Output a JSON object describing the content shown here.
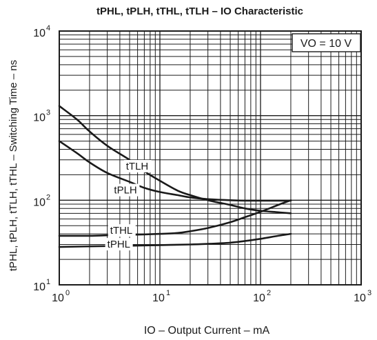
{
  "chart_data": {
    "type": "line",
    "title": "tPHL, tPLH, tTHL, tTLH – IO Characteristic",
    "xlabel": "IO – Output Current – mA",
    "ylabel": "tPHL, tPLH, tTLH, tTHL – Switching Time – ns",
    "x_scale": "log",
    "y_scale": "log",
    "xlim": [
      1,
      1000
    ],
    "ylim": [
      10,
      10000
    ],
    "x_ticks": [
      {
        "base": "10",
        "exp": "0"
      },
      {
        "base": "10",
        "exp": "1"
      },
      {
        "base": "10",
        "exp": "2"
      },
      {
        "base": "10",
        "exp": "3"
      }
    ],
    "y_ticks": [
      {
        "base": "10",
        "exp": "1"
      },
      {
        "base": "10",
        "exp": "2"
      },
      {
        "base": "10",
        "exp": "3"
      },
      {
        "base": "10",
        "exp": "4"
      }
    ],
    "grid": true,
    "annotation": "VO = 10 V",
    "series": [
      {
        "name": "tTLH",
        "label_at": [
          4.6,
          230
        ],
        "x": [
          1,
          1.5,
          2,
          3,
          5,
          7,
          10,
          15,
          20,
          30,
          50,
          70,
          100,
          150,
          200
        ],
        "y": [
          1300,
          900,
          650,
          440,
          300,
          220,
          170,
          130,
          115,
          100,
          88,
          80,
          75,
          72,
          70
        ]
      },
      {
        "name": "tPLH",
        "label_at": [
          3.5,
          120
        ],
        "x": [
          1,
          1.5,
          2,
          3,
          5,
          7,
          10,
          15,
          20,
          30,
          50,
          70,
          100,
          150,
          200
        ],
        "y": [
          500,
          360,
          280,
          210,
          165,
          140,
          125,
          115,
          108,
          103,
          100,
          99,
          99,
          99,
          99
        ]
      },
      {
        "name": "tTHL",
        "label_at": [
          3.2,
          40
        ],
        "x": [
          1,
          2,
          3,
          5,
          10,
          15,
          20,
          30,
          50,
          70,
          100,
          150,
          200
        ],
        "y": [
          38,
          38,
          38.5,
          39,
          40,
          41,
          43,
          47,
          55,
          63,
          73,
          88,
          100
        ]
      },
      {
        "name": "tPHL",
        "label_at": [
          3.0,
          27.5
        ],
        "x": [
          1,
          2,
          5,
          10,
          20,
          30,
          50,
          70,
          100,
          150,
          200
        ],
        "y": [
          28,
          28.5,
          29,
          29.5,
          30,
          30.5,
          31.5,
          33,
          35,
          38,
          40
        ]
      }
    ]
  }
}
